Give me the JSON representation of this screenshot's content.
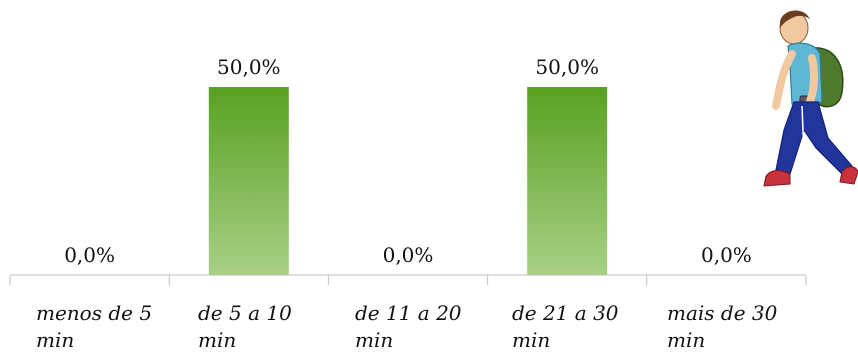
{
  "chart_data": {
    "type": "bar",
    "categories": [
      "menos de 5 min",
      "de 5 a 10 min",
      "de 11 a 20 min",
      "de 21 a 30 min",
      "mais de 30 min"
    ],
    "values": [
      0.0,
      50.0,
      0.0,
      50.0,
      0.0
    ],
    "value_labels": [
      "0,0%",
      "50,0%",
      "0,0%",
      "50,0%",
      "0,0%"
    ],
    "ylim": [
      0,
      100
    ],
    "grid": false,
    "legend": "none",
    "bar_color_top": "#58a121",
    "bar_color_bottom": "#a8cf86"
  },
  "labels": {
    "c0": [
      "menos de 5",
      "min"
    ],
    "c1": [
      "de 5 a 10",
      "min"
    ],
    "c2": [
      "de 11 a 20",
      "min"
    ],
    "c3": [
      "de 21 a 30",
      "min"
    ],
    "c4": [
      "mais de 30",
      "min"
    ]
  },
  "illustration": {
    "icon": "walking-student-icon"
  }
}
